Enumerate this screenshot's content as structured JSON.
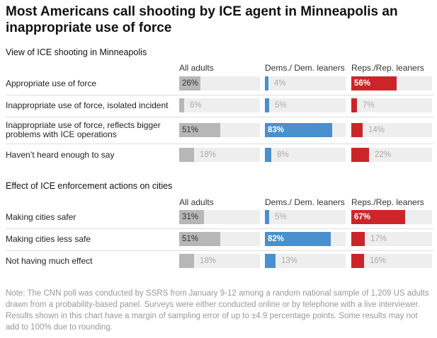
{
  "title": "Most Americans call shooting by ICE agent in Minneapolis an inappropriate use of force",
  "colors": {
    "all": "#b7b7b7",
    "dem": "#4a8fce",
    "rep": "#cc2529",
    "track": "#eeeeee",
    "label_dark": "#333333",
    "label_light": "#aaaaaa",
    "label_white": "#ffffff"
  },
  "note": "Note: The CNN poll was conducted by SSRS from January 9-12 among a random national sample of 1,209 US adults drawn from a probability-based panel. Surveys were either conducted online or by telephone with a live interviewer. Results shown in this chart have a margin of sampling error of up to ±4.9 percentage points. Some results may not add to 100% due to rounding.",
  "chart_data": [
    {
      "type": "bar",
      "title": "View of ICE shooting in Minneapolis",
      "columns": [
        "All adults",
        "Dems./ Dem. leaners",
        "Reps./Rep. leaners"
      ],
      "categories": [
        "Appropriate use of force",
        "Inappropriate use of force, isolated incident",
        "Inappropriate use of force, reflects bigger problems with ICE operations",
        "Haven’t heard enough to say"
      ],
      "series": [
        {
          "name": "All adults",
          "values": [
            26,
            6,
            51,
            18
          ]
        },
        {
          "name": "Dems./ Dem. leaners",
          "values": [
            4,
            5,
            83,
            8
          ]
        },
        {
          "name": "Reps./Rep. leaners",
          "values": [
            56,
            7,
            14,
            22
          ]
        }
      ],
      "xlim": [
        0,
        100
      ]
    },
    {
      "type": "bar",
      "title": "Effect of ICE enforcement actions on cities",
      "columns": [
        "All adults",
        "Dems./ Dem. leaners",
        "Reps./Rep. leaners"
      ],
      "categories": [
        "Making cities safer",
        "Making cities less safe",
        "Not having much effect"
      ],
      "series": [
        {
          "name": "All adults",
          "values": [
            31,
            51,
            18
          ]
        },
        {
          "name": "Dems./ Dem. leaners",
          "values": [
            5,
            82,
            13
          ]
        },
        {
          "name": "Reps./Rep. leaners",
          "values": [
            67,
            17,
            16
          ]
        }
      ],
      "xlim": [
        0,
        100
      ]
    }
  ]
}
